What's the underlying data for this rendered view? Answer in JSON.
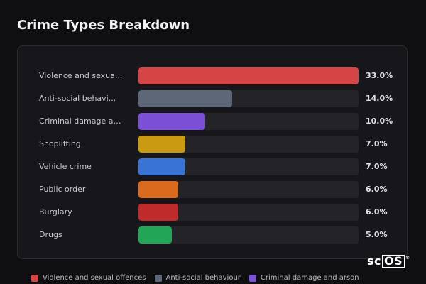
{
  "page": {
    "title": "Crime Types Breakdown"
  },
  "chart_data": {
    "type": "bar",
    "orientation": "horizontal",
    "title": "Crime Types Breakdown",
    "xlim": [
      0,
      33
    ],
    "categories": [
      "Violence and sexual offences",
      "Anti-social behaviour",
      "Criminal damage and arson",
      "Shoplifting",
      "Vehicle crime",
      "Public order",
      "Burglary",
      "Drugs"
    ],
    "display_labels": [
      "Violence and sexua...",
      "Anti-social behavi...",
      "Criminal damage an...",
      "Shoplifting",
      "Vehicle crime",
      "Public order",
      "Burglary",
      "Drugs"
    ],
    "values": [
      33.0,
      14.0,
      10.0,
      7.0,
      7.0,
      6.0,
      6.0,
      5.0
    ],
    "value_labels": [
      "33.0%",
      "14.0%",
      "10.0%",
      "7.0%",
      "7.0%",
      "6.0%",
      "6.0%",
      "5.0%"
    ],
    "colors": [
      "#d64545",
      "#5d6778",
      "#7b4fd6",
      "#c99a12",
      "#3a73d6",
      "#d96a1e",
      "#bf2a2a",
      "#23a556"
    ],
    "legend": [
      {
        "label": "Violence and sexual offences",
        "color": "#d64545"
      },
      {
        "label": "Anti-social behaviour",
        "color": "#5d6778"
      },
      {
        "label": "Criminal damage and arson",
        "color": "#7b4fd6"
      }
    ],
    "legend_position": "bottom"
  },
  "logo": {
    "text_sc": "sc",
    "text_os": "OS",
    "mark": "®"
  }
}
